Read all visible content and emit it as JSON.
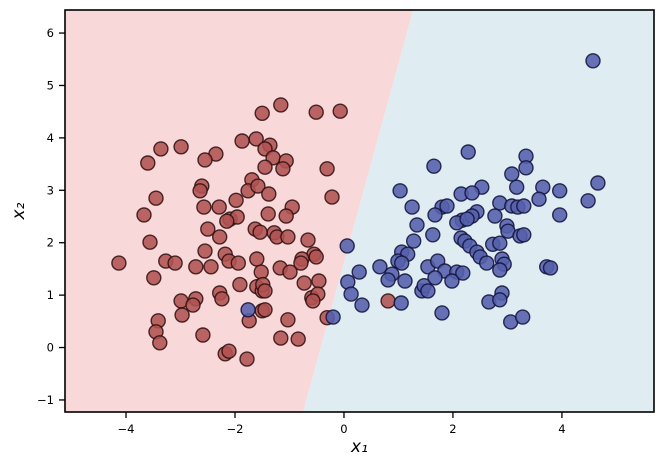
{
  "figure": {
    "type_hint": "classification decision-boundary scatter plot",
    "xlabel": "x₁",
    "ylabel": "x₂"
  },
  "colors": {
    "background": "#ffffff",
    "region_red": "#f8d8d8",
    "region_blue": "#dfedf3",
    "point_red_fill": "#b05252",
    "point_red_edge": "#2b0e0e",
    "point_blue_fill": "#5560ac",
    "point_blue_edge": "#10103a",
    "frame": "#000000"
  },
  "chart_data": {
    "type": "scatter",
    "title": "",
    "xlabel": "x₁",
    "ylabel": "x₂",
    "xlim": [
      -5.12,
      5.69
    ],
    "ylim": [
      -1.23,
      6.44
    ],
    "x_ticks": [
      -4,
      -2,
      0,
      2,
      4
    ],
    "y_ticks": [
      -1,
      0,
      1,
      2,
      3,
      4,
      5,
      6
    ],
    "grid": false,
    "legend_position": "none",
    "decision_boundary": {
      "shape": "line",
      "endpoints": [
        [
          -0.75,
          -1.23
        ],
        [
          1.27,
          6.44
        ]
      ],
      "left_region_class": "red",
      "right_region_class": "blue"
    },
    "marker": {
      "radius_px": 7,
      "fill_opacity": 0.88,
      "edge_width": 1.4
    },
    "series": [
      {
        "name": "class-red",
        "fill": "#b05252",
        "edge": "#2b0e0e",
        "points": [
          [
            -1.16,
            4.63
          ],
          [
            -0.51,
            4.49
          ],
          [
            -0.07,
            4.51
          ],
          [
            -1.5,
            4.47
          ],
          [
            -1.36,
            3.86
          ],
          [
            -1.87,
            3.94
          ],
          [
            -1.61,
            3.98
          ],
          [
            -3.36,
            3.79
          ],
          [
            -2.99,
            3.83
          ],
          [
            -2.35,
            3.69
          ],
          [
            -2.55,
            3.58
          ],
          [
            -3.6,
            3.52
          ],
          [
            -2.61,
            3.08
          ],
          [
            -2.64,
            2.99
          ],
          [
            -3.45,
            2.85
          ],
          [
            -1.69,
            3.2
          ],
          [
            -1.76,
            2.99
          ],
          [
            -1.58,
            3.08
          ],
          [
            -2.57,
            2.68
          ],
          [
            -2.29,
            2.68
          ],
          [
            -3.67,
            2.53
          ],
          [
            -1.98,
            2.81
          ],
          [
            -2.09,
            2.45
          ],
          [
            -1.96,
            2.49
          ],
          [
            -2.15,
            2.41
          ],
          [
            -2.5,
            2.26
          ],
          [
            -2.28,
            2.11
          ],
          [
            -3.56,
            2.01
          ],
          [
            -1.63,
            2.26
          ],
          [
            -1.54,
            2.2
          ],
          [
            -2.55,
            1.84
          ],
          [
            -2.18,
            1.78
          ],
          [
            -3.27,
            1.65
          ],
          [
            -3.1,
            1.61
          ],
          [
            -2.72,
            1.54
          ],
          [
            -2.44,
            1.54
          ],
          [
            -4.13,
            1.61
          ],
          [
            -3.49,
            1.33
          ],
          [
            -2.11,
            1.65
          ],
          [
            -1.94,
            1.61
          ],
          [
            -1.6,
            1.69
          ],
          [
            -1.52,
            1.44
          ],
          [
            -1.45,
            3.79
          ],
          [
            -1.3,
            3.62
          ],
          [
            -1.06,
            3.56
          ],
          [
            -1.12,
            3.41
          ],
          [
            -1.45,
            3.44
          ],
          [
            -0.31,
            3.41
          ],
          [
            -1.38,
            2.93
          ],
          [
            -0.22,
            2.87
          ],
          [
            -0.95,
            2.68
          ],
          [
            -1.39,
            2.55
          ],
          [
            -1.06,
            2.51
          ],
          [
            -1.28,
            2.19
          ],
          [
            -1.23,
            2.11
          ],
          [
            -1.03,
            2.11
          ],
          [
            -0.66,
            2.05
          ],
          [
            -0.55,
            1.78
          ],
          [
            -0.77,
            1.69
          ],
          [
            -0.51,
            1.73
          ],
          [
            -1.17,
            1.52
          ],
          [
            -0.79,
            1.61
          ],
          [
            -0.99,
            1.44
          ],
          [
            -2.99,
            0.89
          ],
          [
            -2.72,
            0.93
          ],
          [
            -2.77,
            0.81
          ],
          [
            -2.97,
            0.62
          ],
          [
            -3.41,
            0.51
          ],
          [
            -2.28,
            1.04
          ],
          [
            -2.24,
            0.93
          ],
          [
            -1.91,
            1.2
          ],
          [
            -1.6,
            1.16
          ],
          [
            -1.5,
            1.08
          ],
          [
            -1.49,
            1.2
          ],
          [
            -1.74,
            0.51
          ],
          [
            -1.5,
            0.7
          ],
          [
            -2.59,
            0.24
          ],
          [
            -3.45,
            0.3
          ],
          [
            -3.38,
            0.09
          ],
          [
            -2.18,
            -0.12
          ],
          [
            -2.11,
            -0.07
          ],
          [
            -1.78,
            -0.22
          ],
          [
            -0.73,
            1.23
          ],
          [
            -0.46,
            1.27
          ],
          [
            -1.45,
            1.08
          ],
          [
            -0.59,
            0.95
          ],
          [
            -0.48,
            1.02
          ],
          [
            -0.57,
            0.89
          ],
          [
            -1.03,
            0.53
          ],
          [
            -1.45,
            0.72
          ],
          [
            -0.31,
            0.57
          ],
          [
            -1.16,
            0.18
          ],
          [
            -0.84,
            0.16
          ],
          [
            0.81,
            0.89
          ]
        ]
      },
      {
        "name": "class-blue",
        "fill": "#5560ac",
        "edge": "#10103a",
        "points": [
          [
            4.57,
            5.47
          ],
          [
            1.65,
            3.46
          ],
          [
            1.03,
            2.99
          ],
          [
            1.25,
            2.68
          ],
          [
            1.8,
            2.68
          ],
          [
            1.89,
            2.7
          ],
          [
            1.67,
            2.53
          ],
          [
            2.15,
            2.93
          ],
          [
            2.17,
            2.43
          ],
          [
            1.34,
            2.34
          ],
          [
            1.28,
            2.03
          ],
          [
            1.63,
            2.15
          ],
          [
            2.15,
            2.09
          ],
          [
            2.07,
            2.38
          ],
          [
            1.06,
            1.82
          ],
          [
            1.17,
            1.78
          ],
          [
            0.99,
            1.65
          ],
          [
            1.06,
            1.61
          ],
          [
            0.66,
            1.54
          ],
          [
            1.54,
            1.54
          ],
          [
            1.72,
            1.65
          ],
          [
            1.85,
            1.46
          ],
          [
            2.07,
            1.44
          ],
          [
            2.18,
            1.42
          ],
          [
            0.28,
            1.44
          ],
          [
            0.88,
            1.4
          ],
          [
            2.28,
            3.73
          ],
          [
            3.34,
            3.65
          ],
          [
            3.08,
            3.31
          ],
          [
            3.34,
            3.43
          ],
          [
            2.53,
            3.06
          ],
          [
            2.35,
            2.95
          ],
          [
            3.17,
            3.06
          ],
          [
            3.65,
            3.06
          ],
          [
            3.96,
            2.99
          ],
          [
            4.66,
            3.14
          ],
          [
            3.58,
            2.83
          ],
          [
            4.48,
            2.8
          ],
          [
            2.86,
            2.76
          ],
          [
            3.08,
            2.7
          ],
          [
            3.19,
            2.68
          ],
          [
            3.3,
            2.7
          ],
          [
            2.44,
            2.59
          ],
          [
            2.35,
            2.51
          ],
          [
            2.26,
            2.45
          ],
          [
            2.77,
            2.51
          ],
          [
            3.96,
            2.53
          ],
          [
            2.99,
            2.32
          ],
          [
            3.01,
            2.22
          ],
          [
            3.23,
            2.13
          ],
          [
            3.3,
            2.15
          ],
          [
            2.22,
            2.03
          ],
          [
            2.31,
            1.94
          ],
          [
            2.73,
            1.97
          ],
          [
            2.86,
            1.99
          ],
          [
            2.44,
            1.82
          ],
          [
            2.5,
            1.73
          ],
          [
            2.62,
            1.61
          ],
          [
            2.9,
            1.69
          ],
          [
            2.94,
            1.59
          ],
          [
            2.86,
            1.48
          ],
          [
            3.72,
            1.54
          ],
          [
            3.79,
            1.52
          ],
          [
            0.07,
            1.25
          ],
          [
            0.13,
            1.02
          ],
          [
            0.33,
            0.81
          ],
          [
            -0.2,
            0.58
          ],
          [
            0.81,
            1.29
          ],
          [
            1.12,
            1.27
          ],
          [
            1.05,
            0.85
          ],
          [
            1.43,
            1.08
          ],
          [
            1.47,
            1.18
          ],
          [
            1.54,
            1.08
          ],
          [
            1.67,
            1.33
          ],
          [
            1.8,
            0.66
          ],
          [
            1.98,
            1.27
          ],
          [
            2.9,
            1.04
          ],
          [
            2.66,
            0.87
          ],
          [
            2.86,
            0.91
          ],
          [
            3.06,
            0.49
          ],
          [
            3.28,
            0.58
          ],
          [
            -1.76,
            0.72
          ],
          [
            0.06,
            1.94
          ]
        ]
      }
    ]
  }
}
